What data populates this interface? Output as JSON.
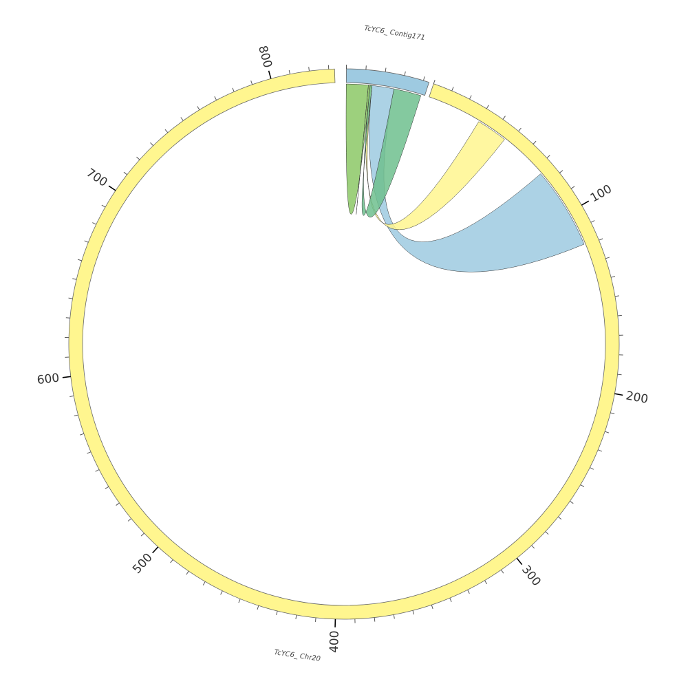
{
  "chart_data": {
    "type": "chord",
    "segments": [
      {
        "name": "TcYC6_ Contig171",
        "length": 43,
        "color": "#9ecae1",
        "ticks": []
      },
      {
        "name": "TcYC6_ Chr20",
        "length": 833,
        "color": "#fff68f",
        "ticks": [
          100,
          200,
          300,
          400,
          500,
          600,
          700,
          800
        ]
      }
    ],
    "minor_tick_step": 10,
    "links": [
      {
        "from": {
          "segment": 0,
          "start": 14,
          "end": 26
        },
        "to": {
          "segment": 1,
          "start": 74,
          "end": 119
        },
        "color": "#9ecae1"
      },
      {
        "from": {
          "segment": 0,
          "start": 12.5,
          "end": 14
        },
        "to": {
          "segment": 1,
          "start": 30,
          "end": 47
        },
        "color": "#fff68f"
      },
      {
        "from": {
          "segment": 0,
          "start": 0,
          "end": 12
        },
        "to": {
          "segment": 0,
          "start": 12,
          "end": 13
        },
        "color": "#8cc866"
      },
      {
        "from": {
          "segment": 0,
          "start": 26,
          "end": 41
        },
        "to": {
          "segment": 0,
          "start": 13,
          "end": 14
        },
        "color": "#6fbf8e"
      }
    ]
  }
}
